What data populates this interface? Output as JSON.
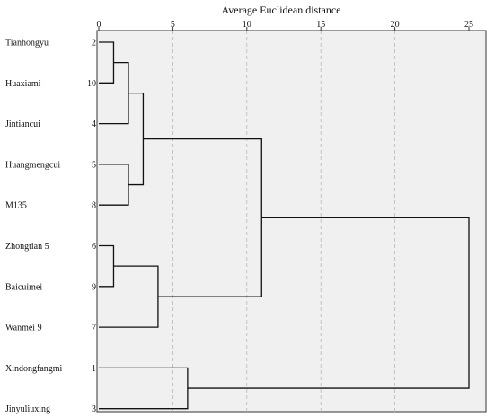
{
  "chart_data": {
    "type": "dendrogram",
    "title": "Average Euclidean distance",
    "xlim": [
      0,
      25
    ],
    "xticks": [
      0,
      5,
      10,
      15,
      20,
      25
    ],
    "grid": true,
    "leaves": [
      {
        "name": "Tianhongyu",
        "id": "2"
      },
      {
        "name": "Huaxiami",
        "id": "10"
      },
      {
        "name": "Jintiancui",
        "id": "4"
      },
      {
        "name": "Huangmengcui",
        "id": "5"
      },
      {
        "name": "M135",
        "id": "8"
      },
      {
        "name": "Zhongtian 5",
        "id": "6"
      },
      {
        "name": "Baicuimei",
        "id": "9"
      },
      {
        "name": "Wanmei 9",
        "id": "7"
      },
      {
        "name": "Xindongfangmi",
        "id": "1"
      },
      {
        "name": "Jinyuliuxing",
        "id": "3"
      }
    ],
    "merges": [
      {
        "a": "2",
        "b": "10",
        "height": 1
      },
      {
        "a": "2+10",
        "b": "4",
        "height": 2
      },
      {
        "a": "5",
        "b": "8",
        "height": 2
      },
      {
        "a": "2+10+4",
        "b": "5+8",
        "height": 3
      },
      {
        "a": "6",
        "b": "9",
        "height": 1
      },
      {
        "a": "6+9",
        "b": "7",
        "height": 4
      },
      {
        "a": "2+10+4+5+8",
        "b": "6+9+7",
        "height": 11
      },
      {
        "a": "1",
        "b": "3",
        "height": 6
      },
      {
        "a": "2+10+4+5+8+6+9+7",
        "b": "1+3",
        "height": 25
      }
    ]
  }
}
